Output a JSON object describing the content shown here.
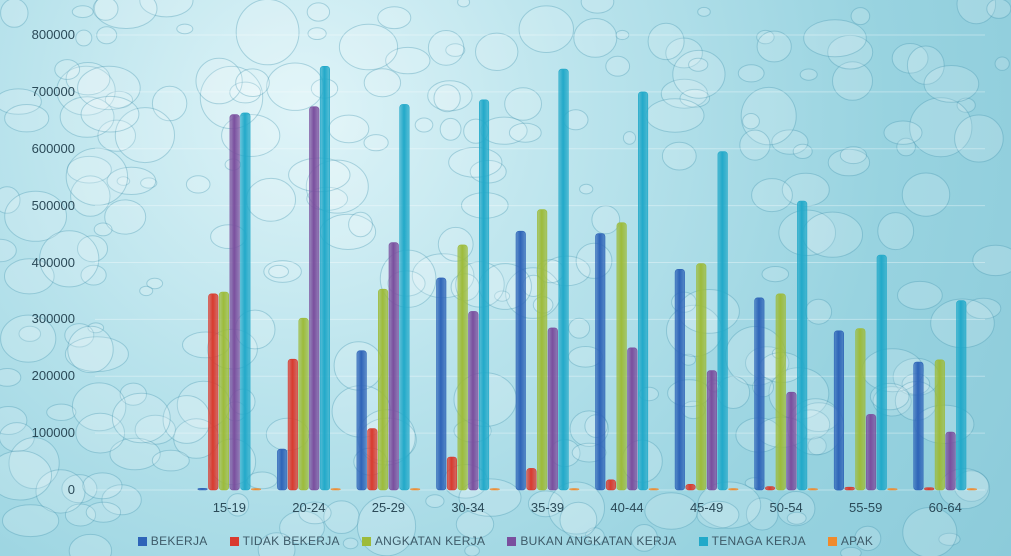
{
  "chart_data": {
    "type": "bar",
    "title": "",
    "xlabel": "",
    "ylabel": "",
    "ylim": [
      0,
      800000
    ],
    "y_ticks": [
      "0",
      "100000",
      "200000",
      "300000",
      "400000",
      "500000",
      "600000",
      "700000",
      "800000"
    ],
    "y_tick_values": [
      0,
      100000,
      200000,
      300000,
      400000,
      500000,
      600000,
      700000,
      800000
    ],
    "categories": [
      "",
      "15-19",
      "20-24",
      "25-29",
      "30-34",
      "35-39",
      "40-44",
      "45-49",
      "50-54",
      "55-59",
      "60-64"
    ],
    "grid": true,
    "legend_position": "bottom",
    "series": [
      {
        "name": "BEKERJA",
        "color": "#2e64b8",
        "values": [
          0,
          3000,
          72000,
          245000,
          373000,
          455000,
          451000,
          388000,
          338000,
          280000,
          225000
        ]
      },
      {
        "name": "TIDAK BEKERJA",
        "color": "#d93a2e",
        "values": [
          0,
          345000,
          230000,
          108000,
          58000,
          38000,
          18000,
          10000,
          6000,
          5000,
          4000
        ]
      },
      {
        "name": "ANGKATAN KERJA",
        "color": "#9dbb3a",
        "values": [
          0,
          348000,
          302000,
          353000,
          431000,
          493000,
          470000,
          398000,
          345000,
          284000,
          229000
        ]
      },
      {
        "name": "BUKAN ANGKATAN KERJA",
        "color": "#7a4f9e",
        "values": [
          0,
          660000,
          674000,
          435000,
          314000,
          285000,
          250000,
          210000,
          172000,
          133000,
          102000
        ]
      },
      {
        "name": "TENAGA KERJA",
        "color": "#22a9c9",
        "values": [
          0,
          663000,
          745000,
          678000,
          686000,
          740000,
          700000,
          595000,
          508000,
          413000,
          333000
        ]
      },
      {
        "name": "APAK",
        "color": "#f08a2c",
        "values": [
          0,
          1,
          1,
          1,
          1,
          1,
          1,
          1,
          1,
          1,
          1
        ]
      }
    ]
  }
}
